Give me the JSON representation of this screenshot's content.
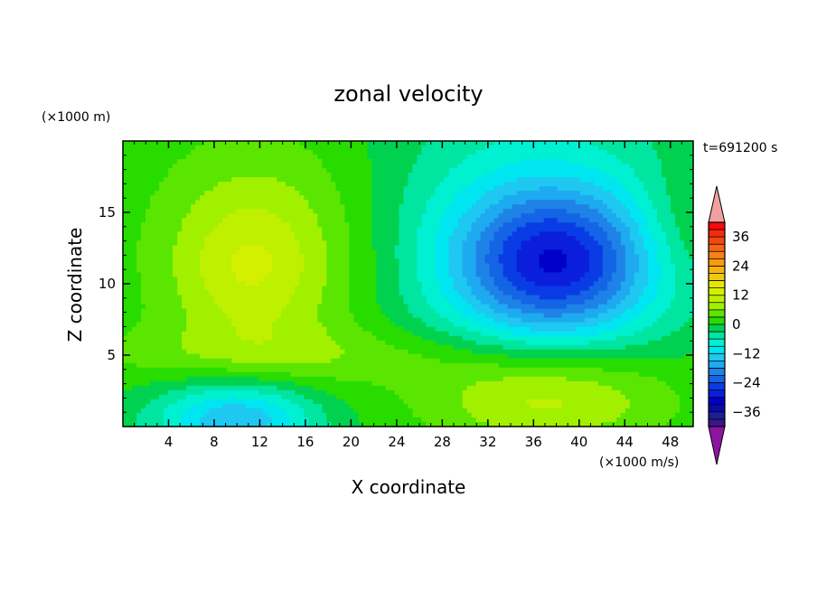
{
  "chart_data": {
    "type": "heatmap",
    "title": "zonal velocity",
    "xlabel": "X coordinate",
    "ylabel": "Z coordinate",
    "x_unit": "(×1000 m/s)",
    "y_unit": "(×1000 m)",
    "time_label": "t=691200 s",
    "xlim": [
      0,
      50
    ],
    "ylim": [
      0,
      20
    ],
    "x_ticks": [
      4,
      8,
      12,
      16,
      20,
      24,
      28,
      32,
      36,
      40,
      44,
      48
    ],
    "y_ticks": [
      5,
      10,
      15
    ],
    "colorbar": {
      "levels": [
        -42,
        -39,
        -36,
        -33,
        -30,
        -27,
        -24,
        -21,
        -18,
        -15,
        -12,
        -9,
        -6,
        -3,
        0,
        3,
        6,
        9,
        12,
        15,
        18,
        21,
        24,
        27,
        30,
        33,
        36,
        39,
        42
      ],
      "tick_labels": [
        "36",
        "24",
        "12",
        "0",
        "−12",
        "−24",
        "−36"
      ],
      "tick_values": [
        36,
        24,
        12,
        0,
        -12,
        -24,
        -36
      ],
      "colors": [
        "#fa0a0a",
        "#f52a0f",
        "#f2480f",
        "#f56414",
        "#f58214",
        "#fa9a12",
        "#f5b40f",
        "#f0c814",
        "#e6e600",
        "#d2f000",
        "#bef000",
        "#a0f000",
        "#5ae600",
        "#28dc00",
        "#00d250",
        "#00e6a0",
        "#00f0d2",
        "#00e6f0",
        "#1ec8f0",
        "#1eaaf0",
        "#1e82e6",
        "#1464e6",
        "#0a3ce6",
        "#0a1edc",
        "#0000c8",
        "#0a0aaa",
        "#1e1e96",
        "#3c148c"
      ],
      "above_color": "#f0a0a0",
      "below_color": "#8c14a0"
    },
    "field": {
      "background": 0,
      "features": [
        {
          "desc": "upper-left positive lobe",
          "x": 12,
          "z": 12,
          "sx": 7,
          "sz": 6,
          "amp": 9
        },
        {
          "desc": "upper-left peak",
          "x": 11,
          "z": 11,
          "sx": 4,
          "sz": 3,
          "amp": 4
        },
        {
          "desc": "negative jet core",
          "x": 38,
          "z": 11.5,
          "sx": 6,
          "sz": 3.5,
          "amp": -22
        },
        {
          "desc": "broad negative region",
          "x": 36,
          "z": 13,
          "sx": 9,
          "sz": 7,
          "amp": -9
        },
        {
          "desc": "lower-right positive lobe",
          "x": 37,
          "z": 2,
          "sx": 8,
          "sz": 2.5,
          "amp": 12
        },
        {
          "desc": "lower-left negative",
          "x": 10,
          "z": 0.5,
          "sx": 5,
          "sz": 2,
          "amp": -16
        },
        {
          "desc": "low-level positive band",
          "x": 15,
          "z": 5,
          "sx": 15,
          "sz": 1.5,
          "amp": 4
        },
        {
          "desc": "right upper edge positive",
          "x": 49,
          "z": 14,
          "sx": 3,
          "sz": 3,
          "amp": 4
        }
      ]
    }
  }
}
